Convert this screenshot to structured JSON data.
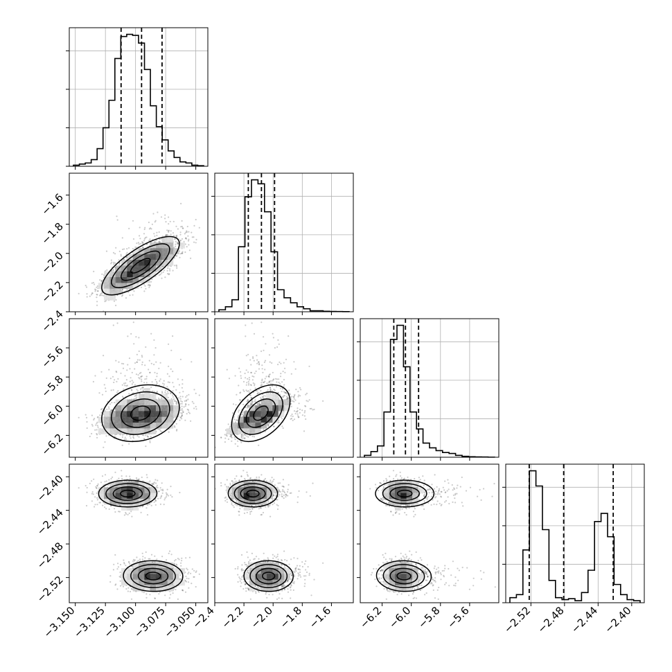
{
  "chart_data": {
    "type": "corner",
    "variables": [
      {
        "range": [
          -3.155,
          -3.04
        ],
        "tick_values": [
          -3.15,
          -3.125,
          -3.1,
          -3.075,
          -3.05
        ],
        "tick_labels": [
          "−3.150",
          "−3.125",
          "−3.100",
          "−3.075",
          "−3.050"
        ],
        "quantiles": [
          -3.112,
          -3.095,
          -3.078
        ]
      },
      {
        "range": [
          -2.4,
          -1.45
        ],
        "tick_values": [
          -2.4,
          -2.2,
          -2.0,
          -1.8,
          -1.6
        ],
        "tick_labels": [
          "−2.4",
          "−2.2",
          "−2.0",
          "−1.8",
          "−1.6"
        ],
        "quantiles": [
          -2.17,
          -2.08,
          -1.99
        ]
      },
      {
        "range": [
          -6.35,
          -5.4
        ],
        "tick_values": [
          -6.2,
          -6.0,
          -5.8,
          -5.6
        ],
        "tick_labels": [
          "−6.2",
          "−6.0",
          "−5.8",
          "−5.6"
        ],
        "quantiles": [
          -6.12,
          -6.04,
          -5.95
        ]
      },
      {
        "range": [
          -2.55,
          -2.385
        ],
        "tick_values": [
          -2.52,
          -2.48,
          -2.44,
          -2.4
        ],
        "tick_labels": [
          "−2.52",
          "−2.48",
          "−2.44",
          "−2.40"
        ],
        "quantiles": [
          -2.522,
          -2.481,
          -2.422
        ]
      }
    ],
    "histograms": [
      [
        1,
        2,
        3,
        6,
        16,
        35,
        60,
        98,
        118,
        120,
        119,
        112,
        88,
        55,
        36,
        24,
        14,
        8,
        4,
        3,
        1,
        0.5
      ],
      [
        2,
        5,
        12,
        65,
        115,
        132,
        128,
        100,
        60,
        22,
        14,
        9,
        5,
        3,
        1,
        1,
        0.5,
        0.3,
        0.2,
        0.1
      ],
      [
        2,
        6,
        12,
        48,
        125,
        140,
        96,
        48,
        30,
        15,
        10,
        7,
        5,
        4,
        2,
        1,
        0.5,
        0.3,
        0.2,
        0.1
      ],
      [
        5,
        8,
        52,
        130,
        115,
        72,
        22,
        5,
        3,
        4,
        2,
        10,
        32,
        80,
        88,
        65,
        18,
        8,
        3,
        2
      ]
    ],
    "grid": true
  }
}
